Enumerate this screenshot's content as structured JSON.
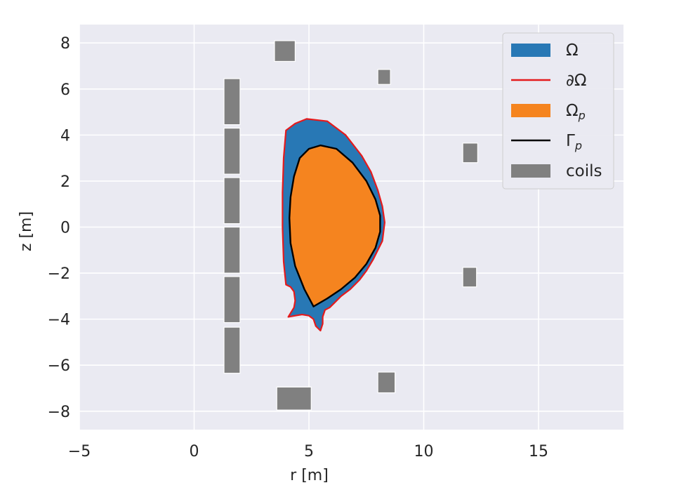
{
  "chart_data": {
    "type": "area",
    "xlabel": "r [m]",
    "ylabel": "z [m]",
    "xlim": [
      -5,
      18.7
    ],
    "ylim": [
      -8.8,
      8.8
    ],
    "xticks": [
      -5,
      0,
      5,
      10,
      15
    ],
    "yticks": [
      -8,
      -6,
      -4,
      -2,
      0,
      2,
      4,
      6,
      8
    ],
    "xtick_labels": [
      "−5",
      "0",
      "5",
      "10",
      "15"
    ],
    "ytick_labels": [
      "−8",
      "−6",
      "−4",
      "−2",
      "0",
      "2",
      "4",
      "6",
      "8"
    ],
    "grid": true,
    "legend_position": "top-right",
    "colors": {
      "background": "#eaeaf2",
      "grid": "#ffffff",
      "omega": "#2878b5",
      "boundary": "#e41a1c",
      "plasma": "#f5841f",
      "plasma_boundary": "#000000",
      "coils": "#808080"
    },
    "legend": [
      {
        "key": "omega",
        "label": "Ω",
        "kind": "patch"
      },
      {
        "key": "boundary",
        "label": "∂Ω",
        "kind": "line"
      },
      {
        "key": "plasma",
        "label": "Ω",
        "sub": "p",
        "kind": "patch"
      },
      {
        "key": "plasma_boundary",
        "label": "Γ",
        "sub": "p",
        "kind": "line"
      },
      {
        "key": "coils",
        "label": "coils",
        "kind": "patch"
      }
    ],
    "domain_boundary": [
      [
        4.0,
        4.2
      ],
      [
        4.4,
        4.5
      ],
      [
        4.9,
        4.7
      ],
      [
        5.8,
        4.6
      ],
      [
        6.6,
        4.0
      ],
      [
        7.3,
        3.1
      ],
      [
        7.7,
        2.4
      ],
      [
        8.0,
        1.6
      ],
      [
        8.2,
        0.9
      ],
      [
        8.3,
        0.2
      ],
      [
        8.2,
        -0.6
      ],
      [
        8.0,
        -1.0
      ],
      [
        7.8,
        -1.4
      ],
      [
        7.5,
        -1.9
      ],
      [
        7.2,
        -2.3
      ],
      [
        6.8,
        -2.7
      ],
      [
        6.4,
        -3.0
      ],
      [
        6.1,
        -3.3
      ],
      [
        5.9,
        -3.5
      ],
      [
        5.7,
        -3.6
      ],
      [
        5.6,
        -3.9
      ],
      [
        5.6,
        -4.2
      ],
      [
        5.5,
        -4.5
      ],
      [
        5.3,
        -4.3
      ],
      [
        5.2,
        -4.0
      ],
      [
        5.0,
        -3.85
      ],
      [
        4.7,
        -3.8
      ],
      [
        4.4,
        -3.85
      ],
      [
        4.1,
        -3.9
      ],
      [
        4.35,
        -3.5
      ],
      [
        4.4,
        -3.2
      ],
      [
        4.35,
        -2.8
      ],
      [
        4.2,
        -2.6
      ],
      [
        4.0,
        -2.5
      ],
      [
        3.9,
        -1.5
      ],
      [
        3.85,
        0.0
      ],
      [
        3.85,
        1.5
      ],
      [
        3.9,
        3.0
      ]
    ],
    "plasma_boundary": [
      [
        5.5,
        3.55
      ],
      [
        6.2,
        3.4
      ],
      [
        6.9,
        2.8
      ],
      [
        7.5,
        2.0
      ],
      [
        7.9,
        1.2
      ],
      [
        8.1,
        0.5
      ],
      [
        8.1,
        -0.2
      ],
      [
        7.9,
        -0.9
      ],
      [
        7.5,
        -1.6
      ],
      [
        7.0,
        -2.2
      ],
      [
        6.4,
        -2.7
      ],
      [
        5.8,
        -3.1
      ],
      [
        5.2,
        -3.45
      ],
      [
        4.8,
        -2.7
      ],
      [
        4.4,
        -1.7
      ],
      [
        4.2,
        -0.7
      ],
      [
        4.15,
        0.4
      ],
      [
        4.2,
        1.3
      ],
      [
        4.35,
        2.2
      ],
      [
        4.6,
        3.0
      ],
      [
        5.0,
        3.4
      ]
    ],
    "coils": [
      {
        "r0": 1.3,
        "r1": 2.0,
        "z0": 4.45,
        "z1": 6.45
      },
      {
        "r0": 1.3,
        "r1": 2.0,
        "z0": 2.3,
        "z1": 4.3
      },
      {
        "r0": 1.3,
        "r1": 2.0,
        "z0": 0.15,
        "z1": 2.15
      },
      {
        "r0": 1.3,
        "r1": 2.0,
        "z0": -2.0,
        "z1": 0.0
      },
      {
        "r0": 1.3,
        "r1": 2.0,
        "z0": -4.15,
        "z1": -2.15
      },
      {
        "r0": 1.3,
        "r1": 2.0,
        "z0": -6.35,
        "z1": -4.35
      },
      {
        "r0": 3.5,
        "r1": 4.4,
        "z0": 7.2,
        "z1": 8.1
      },
      {
        "r0": 8.0,
        "r1": 8.55,
        "z0": 6.2,
        "z1": 6.85
      },
      {
        "r0": 11.7,
        "r1": 12.35,
        "z0": 2.8,
        "z1": 3.65
      },
      {
        "r0": 11.7,
        "r1": 12.3,
        "z0": -2.6,
        "z1": -1.75
      },
      {
        "r0": 8.0,
        "r1": 8.75,
        "z0": -7.2,
        "z1": -6.3
      },
      {
        "r0": 3.6,
        "r1": 5.1,
        "z0": -7.95,
        "z1": -6.95
      }
    ]
  }
}
